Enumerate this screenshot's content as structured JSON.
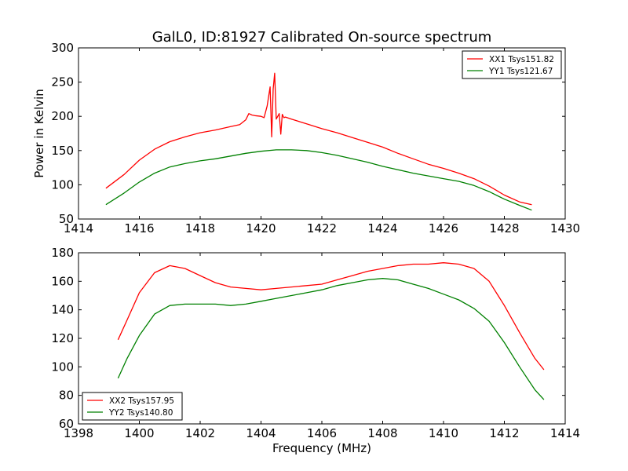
{
  "chart_data": [
    {
      "type": "line",
      "title": "GalL0, ID:81927 Calibrated On-source spectrum",
      "xlabel": "",
      "ylabel": "Power in Kelvin",
      "xlim": [
        1414,
        1430
      ],
      "ylim": [
        50,
        300
      ],
      "xticks": [
        1414,
        1416,
        1418,
        1420,
        1422,
        1424,
        1426,
        1428,
        1430
      ],
      "yticks": [
        50,
        100,
        150,
        200,
        250,
        300
      ],
      "grid": false,
      "legend_position": "top-right",
      "series": [
        {
          "name": "XX1 Tsys151.82",
          "color": "#ff0000",
          "x": [
            1414.9,
            1415.5,
            1416.0,
            1416.5,
            1417.0,
            1417.5,
            1418.0,
            1418.5,
            1419.0,
            1419.3,
            1419.5,
            1419.6,
            1419.7,
            1419.8,
            1420.0,
            1420.1,
            1420.2,
            1420.3,
            1420.35,
            1420.4,
            1420.45,
            1420.5,
            1420.55,
            1420.6,
            1420.65,
            1420.7,
            1420.75,
            1420.8,
            1421.0,
            1421.5,
            1422.0,
            1422.5,
            1423.0,
            1423.5,
            1424.0,
            1424.5,
            1425.0,
            1425.5,
            1426.0,
            1426.5,
            1427.0,
            1427.5,
            1428.0,
            1428.5,
            1428.9
          ],
          "y": [
            95,
            115,
            136,
            152,
            163,
            170,
            176,
            180,
            185,
            188,
            195,
            204,
            202,
            201,
            200,
            198,
            215,
            243,
            170,
            240,
            263,
            196,
            200,
            204,
            174,
            203,
            198,
            199,
            196,
            189,
            182,
            176,
            169,
            162,
            155,
            146,
            138,
            130,
            124,
            117,
            109,
            98,
            85,
            75,
            71
          ]
        },
        {
          "name": "YY1 Tsys121.67",
          "color": "#008000",
          "x": [
            1414.9,
            1415.5,
            1416.0,
            1416.5,
            1417.0,
            1417.5,
            1418.0,
            1418.5,
            1419.0,
            1419.5,
            1420.0,
            1420.5,
            1421.0,
            1421.5,
            1422.0,
            1422.5,
            1423.0,
            1423.5,
            1424.0,
            1424.5,
            1425.0,
            1425.5,
            1426.0,
            1426.5,
            1427.0,
            1427.5,
            1428.0,
            1428.5,
            1428.9
          ],
          "y": [
            71,
            88,
            104,
            117,
            126,
            131,
            135,
            138,
            142,
            146,
            149,
            151,
            151,
            150,
            147,
            143,
            138,
            133,
            127,
            122,
            117,
            113,
            109,
            105,
            99,
            90,
            79,
            70,
            63
          ]
        }
      ]
    },
    {
      "type": "line",
      "title": "",
      "xlabel": "Frequency (MHz)",
      "ylabel": "",
      "xlim": [
        1398,
        1414
      ],
      "ylim": [
        60,
        180
      ],
      "xticks": [
        1398,
        1400,
        1402,
        1404,
        1406,
        1408,
        1410,
        1412,
        1414
      ],
      "yticks": [
        60,
        80,
        100,
        120,
        140,
        160,
        180
      ],
      "grid": false,
      "legend_position": "bottom-left",
      "series": [
        {
          "name": "XX2 Tsys157.95",
          "color": "#ff0000",
          "x": [
            1399.3,
            1399.6,
            1400.0,
            1400.5,
            1401.0,
            1401.5,
            1402.0,
            1402.5,
            1403.0,
            1403.5,
            1404.0,
            1404.5,
            1405.0,
            1405.5,
            1406.0,
            1406.5,
            1407.0,
            1407.5,
            1408.0,
            1408.5,
            1409.0,
            1409.5,
            1410.0,
            1410.5,
            1411.0,
            1411.5,
            1412.0,
            1412.5,
            1413.0,
            1413.3
          ],
          "y": [
            119,
            133,
            152,
            166,
            171,
            169,
            164,
            159,
            156,
            155,
            154,
            155,
            156,
            157,
            158,
            161,
            164,
            167,
            169,
            171,
            172,
            172,
            173,
            172,
            169,
            160,
            143,
            124,
            106,
            98
          ]
        },
        {
          "name": "YY2 Tsys140.80",
          "color": "#008000",
          "x": [
            1399.3,
            1399.6,
            1400.0,
            1400.5,
            1401.0,
            1401.5,
            1402.0,
            1402.5,
            1403.0,
            1403.5,
            1404.0,
            1404.5,
            1405.0,
            1405.5,
            1406.0,
            1406.5,
            1407.0,
            1407.5,
            1408.0,
            1408.5,
            1409.0,
            1409.5,
            1410.0,
            1410.5,
            1411.0,
            1411.5,
            1412.0,
            1412.5,
            1413.0,
            1413.3
          ],
          "y": [
            92,
            106,
            122,
            137,
            143,
            144,
            144,
            144,
            143,
            144,
            146,
            148,
            150,
            152,
            154,
            157,
            159,
            161,
            162,
            161,
            158,
            155,
            151,
            147,
            141,
            132,
            117,
            100,
            84,
            77
          ]
        }
      ]
    }
  ]
}
